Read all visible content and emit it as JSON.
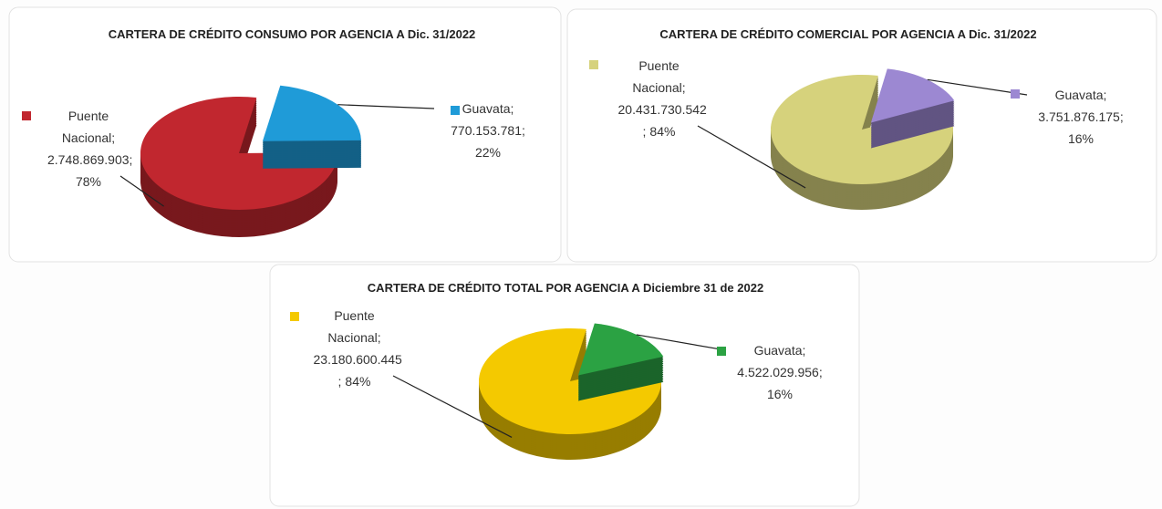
{
  "chart_data": [
    {
      "type": "pie",
      "title": "CARTERA DE CRÉDITO CONSUMO POR AGENCIA A Dic. 31/2022",
      "categories": [
        "Puente Nacional",
        "Guavata"
      ],
      "values": [
        2748869903,
        770153781
      ],
      "value_labels": [
        "2.748.869.903",
        "770.153.781"
      ],
      "percents": [
        78,
        22
      ],
      "percent_labels": [
        "78%",
        "22%"
      ],
      "label_separator": ";",
      "colors": [
        "#c1272f",
        "#1f9bd8"
      ]
    },
    {
      "type": "pie",
      "title": "CARTERA DE CRÉDITO COMERCIAL POR AGENCIA A Dic. 31/2022",
      "categories": [
        "Puente Nacional",
        "Guavata"
      ],
      "values": [
        20431730542,
        3751876175
      ],
      "value_labels": [
        "20.431.730.542",
        "3.751.876.175"
      ],
      "percents": [
        84,
        16
      ],
      "percent_labels": [
        "84%",
        "16%"
      ],
      "label_separator": ";",
      "colors": [
        "#d6d27c",
        "#9c88d2"
      ]
    },
    {
      "type": "pie",
      "title": "CARTERA DE CRÉDITO TOTAL POR AGENCIA A Diciembre 31 de 2022",
      "categories": [
        "Puente Nacional",
        "Guavata"
      ],
      "values": [
        23180600445,
        4522029956
      ],
      "value_labels": [
        "23.180.600.445",
        "4.522.029.956"
      ],
      "percents": [
        84,
        16
      ],
      "percent_labels": [
        "84%",
        "16%"
      ],
      "label_separator": ";",
      "colors": [
        "#f4c900",
        "#2ba243"
      ]
    }
  ]
}
